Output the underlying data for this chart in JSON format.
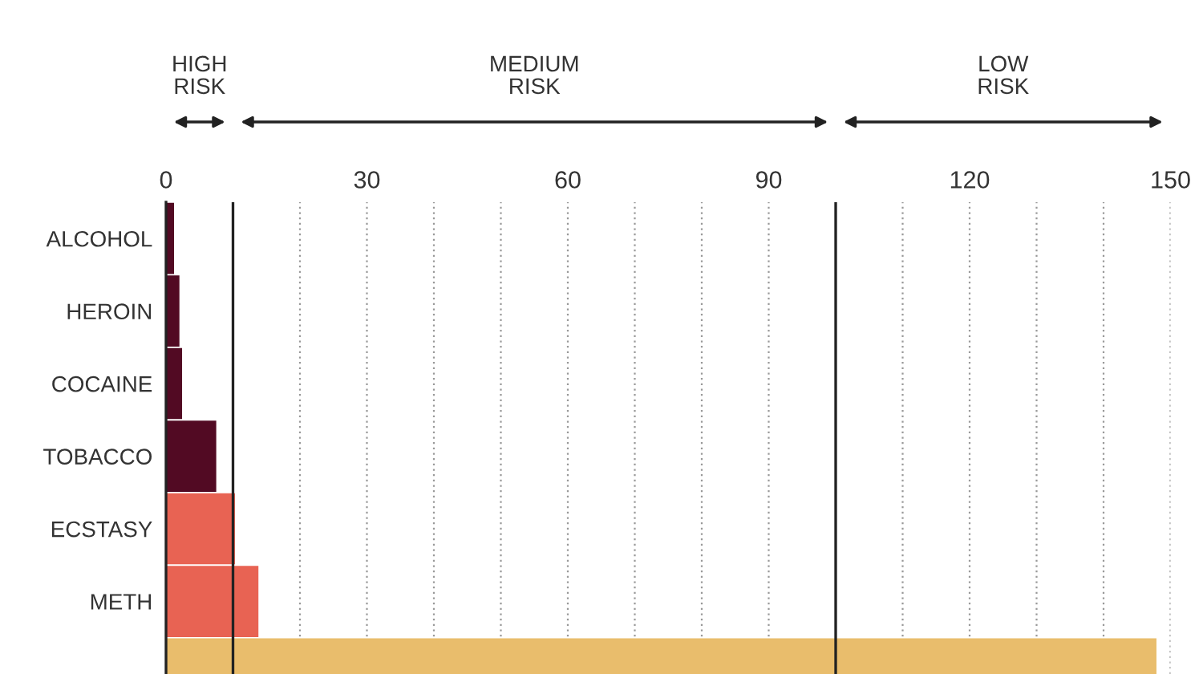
{
  "chart_data": {
    "type": "bar",
    "orientation": "horizontal",
    "categories": [
      "ALCOHOL",
      "HEROIN",
      "COCAINE",
      "TOBACCO",
      "ECSTASY",
      "METH",
      null
    ],
    "values": [
      1.3,
      2.1,
      2.5,
      7.6,
      10.4,
      13.9,
      148
    ],
    "colors": [
      "#520a23",
      "#520a23",
      "#520a23",
      "#520a23",
      "#e86353",
      "#e86353",
      "#e9bd6c"
    ],
    "xlim": [
      0,
      150
    ],
    "xticks": [
      0,
      {
        "value": 20,
        "label": null
      },
      30,
      {
        "value": 40,
        "label": null
      },
      {
        "value": 50,
        "label": null
      },
      60,
      {
        "value": 70,
        "label": null
      },
      {
        "value": 80,
        "label": null
      },
      90,
      {
        "value": 110,
        "label": null
      },
      120,
      {
        "value": 130,
        "label": null
      },
      {
        "value": 140,
        "label": null
      },
      150
    ],
    "grid": "x",
    "ref_lines": [
      {
        "axis": "x",
        "value": 10,
        "color": "#222222"
      },
      {
        "axis": "x",
        "value": 100,
        "color": "#222222"
      }
    ],
    "annotations": [
      "HIGH\nRISK",
      "MEDIUM\nRISK",
      "LOW\nRISK"
    ]
  }
}
